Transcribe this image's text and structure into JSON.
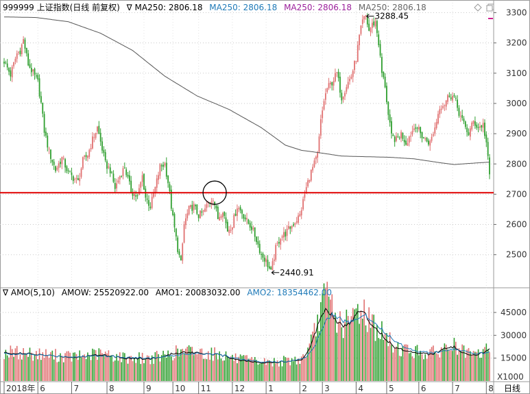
{
  "header": {
    "symbol": "999999 上证指数(日线 前复权)",
    "marker": "∇",
    "ma_items": [
      {
        "text": "MA250: 2806.18",
        "color": "#000000"
      },
      {
        "text": "MA250: 2806.18",
        "color": "#1f7ab8"
      },
      {
        "text": "MA250: 2806.18",
        "color": "#9b1f9b"
      },
      {
        "text": "MA250: 2806.18",
        "color": "#666666"
      }
    ]
  },
  "lower_header": {
    "marker": "∇",
    "items": [
      {
        "text": "AMO(5,10)",
        "color": "#000000"
      },
      {
        "text": "AMOW: 25520922.00",
        "color": "#000000"
      },
      {
        "text": "AMO1: 20083032.00",
        "color": "#000000"
      },
      {
        "text": "AMO2: 18354462.00",
        "color": "#1f7ab8"
      }
    ]
  },
  "colors": {
    "up": "#e07070",
    "down": "#2e9e2e",
    "ma_line": "#555555",
    "support_line": "#e00000",
    "amo1_line": "#000000",
    "amo2_line": "#1f7ab8",
    "grid": "#c8c8c8",
    "accent": "#d02090"
  },
  "chart_data": [
    {
      "type": "candlestick",
      "title": "999999 上证指数(日线 前复权)",
      "ylim": [
        2400,
        3330
      ],
      "yticks": [
        2500,
        2600,
        2700,
        2800,
        2900,
        3000,
        3100,
        3200,
        3300
      ],
      "x_labels": [
        {
          "label": "2018年",
          "x": 0
        },
        {
          "label": "6",
          "x": 21
        },
        {
          "label": "7",
          "x": 42
        },
        {
          "label": "8",
          "x": 64
        },
        {
          "label": "9",
          "x": 87
        },
        {
          "label": "10",
          "x": 105
        },
        {
          "label": "11",
          "x": 121
        },
        {
          "label": "12",
          "x": 142
        },
        {
          "label": "1",
          "x": 163
        },
        {
          "label": "2",
          "x": 184
        },
        {
          "label": "3",
          "x": 198
        },
        {
          "label": "4",
          "x": 219
        },
        {
          "label": "5",
          "x": 238
        },
        {
          "label": "6",
          "x": 258
        },
        {
          "label": "7",
          "x": 279
        },
        {
          "label": "8",
          "x": 300
        }
      ],
      "x_end_label": "日线",
      "close_path": [
        [
          0,
          3140
        ],
        [
          4,
          3095
        ],
        [
          8,
          3165
        ],
        [
          10,
          3175
        ],
        [
          12,
          3210
        ],
        [
          15,
          3130
        ],
        [
          18,
          3100
        ],
        [
          21,
          3070
        ],
        [
          23,
          3000
        ],
        [
          25,
          2910
        ],
        [
          28,
          2840
        ],
        [
          32,
          2780
        ],
        [
          36,
          2820
        ],
        [
          40,
          2770
        ],
        [
          42,
          2760
        ],
        [
          46,
          2740
        ],
        [
          49,
          2810
        ],
        [
          52,
          2830
        ],
        [
          55,
          2880
        ],
        [
          58,
          2920
        ],
        [
          61,
          2850
        ],
        [
          63,
          2800
        ],
        [
          66,
          2780
        ],
        [
          69,
          2720
        ],
        [
          72,
          2760
        ],
        [
          75,
          2790
        ],
        [
          79,
          2710
        ],
        [
          83,
          2690
        ],
        [
          86,
          2760
        ],
        [
          88,
          2690
        ],
        [
          91,
          2660
        ],
        [
          94,
          2720
        ],
        [
          97,
          2790
        ],
        [
          100,
          2800
        ],
        [
          102,
          2740
        ],
        [
          105,
          2620
        ],
        [
          108,
          2520
        ],
        [
          110,
          2470
        ],
        [
          112,
          2600
        ],
        [
          115,
          2650
        ],
        [
          118,
          2660
        ],
        [
          121,
          2630
        ],
        [
          124,
          2640
        ],
        [
          127,
          2670
        ],
        [
          130,
          2690
        ],
        [
          133,
          2620
        ],
        [
          136,
          2650
        ],
        [
          139,
          2580
        ],
        [
          142,
          2600
        ],
        [
          145,
          2660
        ],
        [
          148,
          2640
        ],
        [
          151,
          2610
        ],
        [
          154,
          2590
        ],
        [
          157,
          2550
        ],
        [
          160,
          2500
        ],
        [
          163,
          2480
        ],
        [
          166,
          2441
        ],
        [
          169,
          2520
        ],
        [
          172,
          2560
        ],
        [
          175,
          2570
        ],
        [
          178,
          2590
        ],
        [
          181,
          2610
        ],
        [
          184,
          2630
        ],
        [
          187,
          2700
        ],
        [
          190,
          2760
        ],
        [
          193,
          2800
        ],
        [
          195,
          2830
        ],
        [
          197,
          2940
        ],
        [
          199,
          3010
        ],
        [
          201,
          3050
        ],
        [
          204,
          3070
        ],
        [
          207,
          3100
        ],
        [
          210,
          3020
        ],
        [
          213,
          3060
        ],
        [
          216,
          3090
        ],
        [
          219,
          3150
        ],
        [
          221,
          3220
        ],
        [
          223,
          3270
        ],
        [
          225,
          3288
        ],
        [
          227,
          3240
        ],
        [
          229,
          3260
        ],
        [
          231,
          3270
        ],
        [
          233,
          3200
        ],
        [
          235,
          3100
        ],
        [
          237,
          3060
        ],
        [
          239,
          2960
        ],
        [
          241,
          2890
        ],
        [
          244,
          2880
        ],
        [
          247,
          2900
        ],
        [
          250,
          2870
        ],
        [
          253,
          2900
        ],
        [
          256,
          2930
        ],
        [
          259,
          2900
        ],
        [
          262,
          2880
        ],
        [
          265,
          2870
        ],
        [
          268,
          2920
        ],
        [
          271,
          2990
        ],
        [
          274,
          3000
        ],
        [
          277,
          3030
        ],
        [
          280,
          3020
        ],
        [
          283,
          2970
        ],
        [
          286,
          2930
        ],
        [
          289,
          2900
        ],
        [
          292,
          2940
        ],
        [
          295,
          2920
        ],
        [
          298,
          2930
        ],
        [
          300,
          2870
        ],
        [
          302,
          2760
        ]
      ],
      "ma250_path": [
        [
          0,
          3286
        ],
        [
          20,
          3284
        ],
        [
          40,
          3270
        ],
        [
          60,
          3232
        ],
        [
          80,
          3175
        ],
        [
          100,
          3090
        ],
        [
          120,
          3025
        ],
        [
          140,
          2980
        ],
        [
          160,
          2920
        ],
        [
          175,
          2862
        ],
        [
          185,
          2845
        ],
        [
          195,
          2838
        ],
        [
          210,
          2826
        ],
        [
          225,
          2824
        ],
        [
          240,
          2822
        ],
        [
          255,
          2817
        ],
        [
          270,
          2805
        ],
        [
          280,
          2798
        ],
        [
          290,
          2802
        ],
        [
          302,
          2806
        ]
      ],
      "support_level": 2705,
      "annotations": [
        {
          "text": "3288.45",
          "x": 225,
          "y": 3288.45,
          "side": "right"
        },
        {
          "text": "2440.91",
          "x": 166,
          "y": 2440.91,
          "side": "right"
        }
      ],
      "highlight_circle": {
        "x": 131,
        "y": 2705
      }
    },
    {
      "type": "bar",
      "title": "AMO(5,10)",
      "ylim": [
        0,
        58000
      ],
      "yticks": [
        15000,
        30000,
        45000
      ],
      "unit_label": "X1000",
      "amo_path": [
        [
          0,
          18500
        ],
        [
          15,
          17800
        ],
        [
          30,
          16500
        ],
        [
          45,
          15500
        ],
        [
          60,
          17500
        ],
        [
          75,
          15000
        ],
        [
          90,
          14500
        ],
        [
          100,
          16000
        ],
        [
          105,
          18000
        ],
        [
          115,
          19000
        ],
        [
          125,
          18200
        ],
        [
          135,
          17000
        ],
        [
          145,
          14000
        ],
        [
          155,
          12500
        ],
        [
          165,
          12000
        ],
        [
          175,
          12800
        ],
        [
          185,
          14000
        ],
        [
          190,
          21000
        ],
        [
          194,
          33000
        ],
        [
          197,
          43000
        ],
        [
          200,
          48000
        ],
        [
          204,
          44000
        ],
        [
          208,
          38000
        ],
        [
          212,
          36000
        ],
        [
          216,
          38000
        ],
        [
          220,
          47000
        ],
        [
          224,
          45000
        ],
        [
          228,
          38000
        ],
        [
          233,
          33000
        ],
        [
          238,
          27000
        ],
        [
          243,
          22000
        ],
        [
          250,
          20000
        ],
        [
          258,
          18500
        ],
        [
          266,
          17500
        ],
        [
          274,
          21000
        ],
        [
          280,
          22500
        ],
        [
          285,
          18500
        ],
        [
          290,
          16500
        ],
        [
          295,
          17200
        ],
        [
          302,
          21000
        ]
      ],
      "amo2_path": [
        [
          0,
          18000
        ],
        [
          15,
          17500
        ],
        [
          30,
          16500
        ],
        [
          45,
          15800
        ],
        [
          60,
          16800
        ],
        [
          75,
          15500
        ],
        [
          90,
          15000
        ],
        [
          100,
          15800
        ],
        [
          110,
          17500
        ],
        [
          120,
          18200
        ],
        [
          130,
          17800
        ],
        [
          140,
          16000
        ],
        [
          150,
          13800
        ],
        [
          160,
          12800
        ],
        [
          170,
          12600
        ],
        [
          180,
          13300
        ],
        [
          188,
          16000
        ],
        [
          193,
          22000
        ],
        [
          197,
          33000
        ],
        [
          201,
          42000
        ],
        [
          205,
          44000
        ],
        [
          210,
          40000
        ],
        [
          215,
          38000
        ],
        [
          220,
          42000
        ],
        [
          225,
          43000
        ],
        [
          230,
          39000
        ],
        [
          236,
          33000
        ],
        [
          242,
          27000
        ],
        [
          250,
          22000
        ],
        [
          258,
          19500
        ],
        [
          266,
          18500
        ],
        [
          274,
          19500
        ],
        [
          280,
          21000
        ],
        [
          286,
          19500
        ],
        [
          292,
          17500
        ],
        [
          302,
          19000
        ]
      ]
    }
  ]
}
